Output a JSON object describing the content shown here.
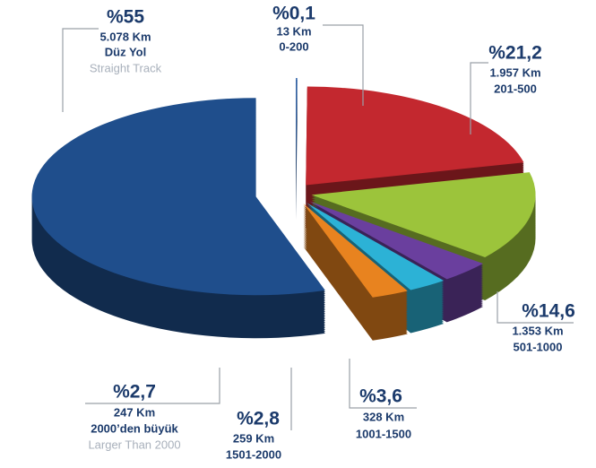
{
  "chart_data": {
    "type": "pie",
    "values": [
      55,
      0.1,
      21.2,
      14.6,
      3.6,
      2.8,
      2.7
    ],
    "value_labels": [
      "%55",
      "%0,1",
      "%21,2",
      "%14,6",
      "%3,6",
      "%2,8",
      "%2,7"
    ],
    "km": [
      "5.078 Km",
      "13 Km",
      "1.957 Km",
      "1.353 Km",
      "328 Km",
      "259 Km",
      "247 Km"
    ],
    "categories": [
      "Düz Yol",
      "0-200",
      "201-500",
      "501-1000",
      "1001-1500",
      "1501-2000",
      "2000’den büyük"
    ],
    "english": [
      "Straight Track",
      null,
      null,
      null,
      null,
      null,
      "Larger Than 2000"
    ],
    "colors": [
      "#1f4e8c",
      "#2f62a8",
      "#c3282f",
      "#9cc43b",
      "#6a3f9e",
      "#2cb2d6",
      "#e8831f"
    ]
  }
}
